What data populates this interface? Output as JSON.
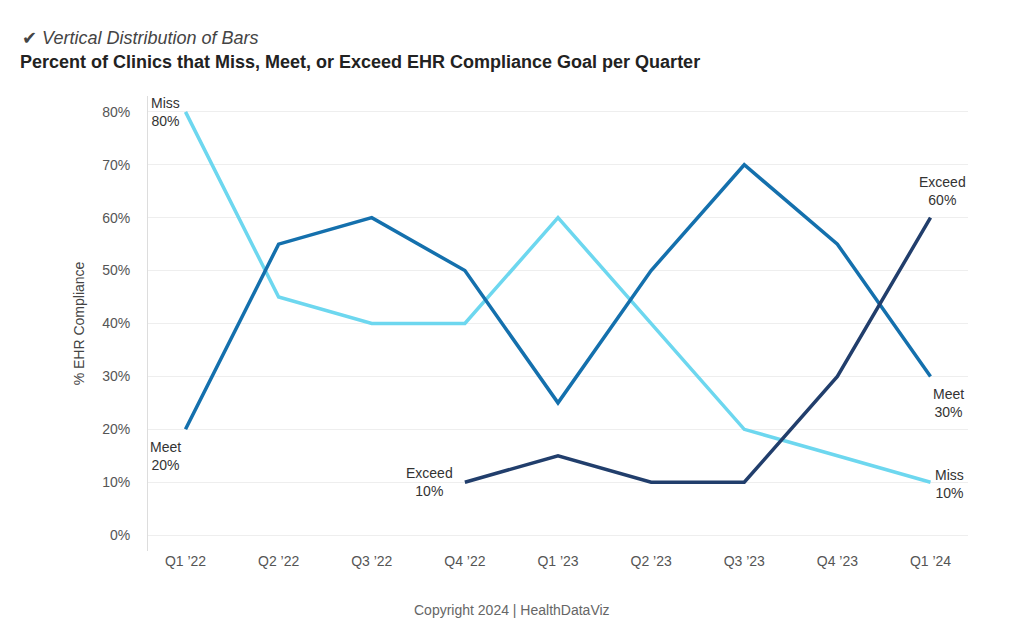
{
  "chart_data": {
    "type": "line",
    "subtitle": "✔ Vertical Distribution of Bars",
    "title": "Percent of Clinics that Miss, Meet, or Exceed EHR Compliance Goal per Quarter",
    "y_label": "% EHR Compliance",
    "annotations": [
      "Copyright 2024 | HealthDataViz"
    ],
    "categories": [
      "Q1 ’22",
      "Q2 ’22",
      "Q3 ’22",
      "Q4 ’22",
      "Q1 ’23",
      "Q2 ’23",
      "Q3 ’23",
      "Q4 ’23",
      "Q1 ’24"
    ],
    "series": [
      {
        "name": "Miss",
        "color": "#6dd7ef",
        "values": [
          80,
          45,
          40,
          40,
          60,
          40,
          20,
          15,
          10
        ],
        "value_labels": [
          "80%",
          null,
          null,
          null,
          null,
          null,
          null,
          null,
          "10%"
        ]
      },
      {
        "name": "Meet",
        "color": "#1470ad",
        "values": [
          20,
          55,
          60,
          50,
          25,
          50,
          70,
          55,
          30
        ],
        "value_labels": [
          "20%",
          null,
          null,
          null,
          null,
          null,
          null,
          null,
          "30%"
        ]
      },
      {
        "name": "Exceed",
        "color": "#213e6c",
        "values": [
          null,
          null,
          null,
          10,
          15,
          10,
          10,
          30,
          60
        ],
        "value_labels": [
          null,
          null,
          null,
          "10%",
          null,
          null,
          null,
          null,
          "60%"
        ]
      }
    ],
    "ylim": [
      -3,
      83
    ],
    "yticks": [
      {
        "value": 0,
        "label": "0%"
      },
      {
        "value": 10,
        "label": "10%"
      },
      {
        "value": 20,
        "label": "20%"
      },
      {
        "value": 30,
        "label": "30%"
      },
      {
        "value": 40,
        "label": "40%"
      },
      {
        "value": 50,
        "label": "50%"
      },
      {
        "value": 60,
        "label": "60%"
      },
      {
        "value": 70,
        "label": "70%"
      },
      {
        "value": 80,
        "label": "80%"
      }
    ],
    "grid": true,
    "data_labels": true
  }
}
